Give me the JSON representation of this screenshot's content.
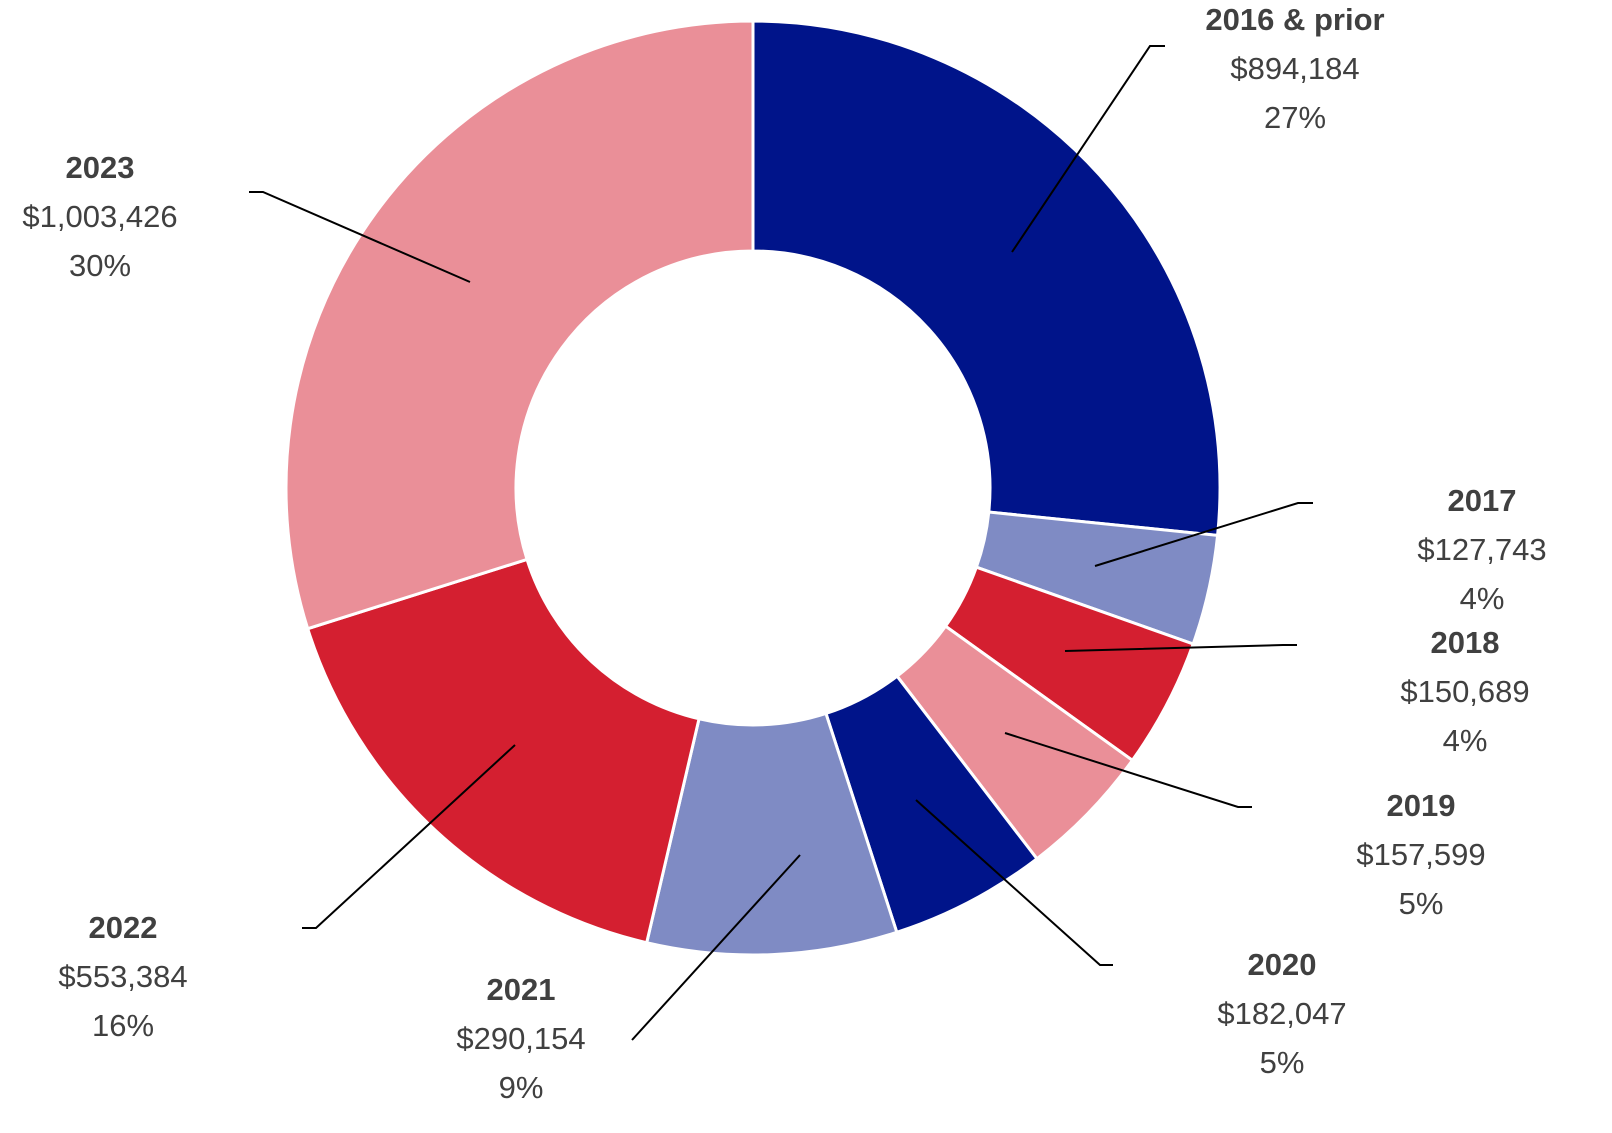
{
  "chart_data": {
    "type": "donut",
    "categories": [
      "2016 & prior",
      "2017",
      "2018",
      "2019",
      "2020",
      "2021",
      "2022",
      "2023"
    ],
    "values": [
      894184,
      127743,
      150689,
      157599,
      182047,
      290154,
      553384,
      1003426
    ],
    "value_labels": [
      "$894,184",
      "$127,743",
      "$150,689",
      "$157,599",
      "$182,047",
      "$290,154",
      "$553,384",
      "$1,003,426"
    ],
    "percent_labels": [
      "27%",
      "4%",
      "4%",
      "5%",
      "5%",
      "9%",
      "16%",
      "30%"
    ],
    "colors": [
      "#00148a",
      "#7f8bc4",
      "#d41f30",
      "#ea8f98",
      "#00148a",
      "#7f8bc4",
      "#d41f30",
      "#ea8f98"
    ]
  }
}
